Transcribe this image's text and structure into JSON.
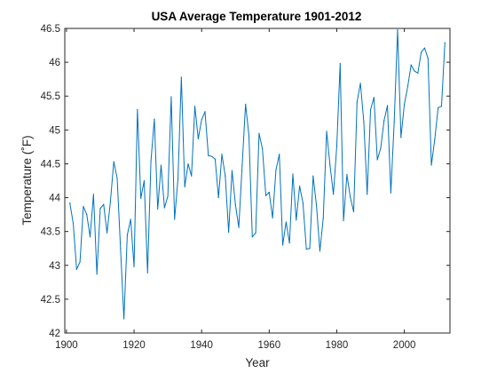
{
  "chart_data": {
    "type": "line",
    "title": "USA Average Temperature 1901-2012",
    "xlabel": "Year",
    "ylabel": "Temperature (˚F)",
    "xlim": [
      1899.5,
      2013.5
    ],
    "ylim": [
      42,
      46.5
    ],
    "xticks": [
      1900,
      1920,
      1940,
      1960,
      1980,
      2000
    ],
    "yticks": [
      42,
      42.5,
      43,
      43.5,
      44,
      44.5,
      45,
      45.5,
      46,
      46.5
    ],
    "ytick_labels": [
      "42",
      "42.5",
      "43",
      "43.5",
      "44",
      "44.5",
      "45",
      "45.5",
      "46",
      "46.5"
    ],
    "grid": false,
    "line_color": "#0072BD",
    "x": [
      1901,
      1902,
      1903,
      1904,
      1905,
      1906,
      1907,
      1908,
      1909,
      1910,
      1911,
      1912,
      1913,
      1914,
      1915,
      1916,
      1917,
      1918,
      1919,
      1920,
      1921,
      1922,
      1923,
      1924,
      1925,
      1926,
      1927,
      1928,
      1929,
      1930,
      1931,
      1932,
      1933,
      1934,
      1935,
      1936,
      1937,
      1938,
      1939,
      1940,
      1941,
      1942,
      1943,
      1944,
      1945,
      1946,
      1947,
      1948,
      1949,
      1950,
      1951,
      1952,
      1953,
      1954,
      1955,
      1956,
      1957,
      1958,
      1959,
      1960,
      1961,
      1962,
      1963,
      1964,
      1965,
      1966,
      1967,
      1968,
      1969,
      1970,
      1971,
      1972,
      1973,
      1974,
      1975,
      1976,
      1977,
      1978,
      1979,
      1980,
      1981,
      1982,
      1983,
      1984,
      1985,
      1986,
      1987,
      1988,
      1989,
      1990,
      1991,
      1992,
      1993,
      1994,
      1995,
      1996,
      1997,
      1998,
      1999,
      2000,
      2001,
      2002,
      2003,
      2004,
      2005,
      2006,
      2007,
      2008,
      2009,
      2010,
      2011,
      2012
    ],
    "y": [
      43.92,
      43.62,
      42.94,
      43.05,
      43.87,
      43.75,
      43.42,
      44.05,
      42.87,
      43.84,
      43.9,
      43.48,
      43.94,
      44.53,
      44.29,
      43.25,
      42.21,
      43.45,
      43.68,
      42.98,
      45.3,
      43.99,
      44.25,
      42.89,
      44.54,
      45.16,
      43.83,
      44.48,
      43.85,
      44.02,
      45.49,
      43.68,
      44.28,
      45.78,
      44.16,
      44.5,
      44.32,
      45.35,
      44.87,
      45.15,
      45.27,
      44.62,
      44.61,
      44.57,
      44.0,
      44.64,
      44.32,
      43.49,
      44.4,
      43.9,
      43.56,
      44.48,
      45.38,
      44.92,
      43.42,
      43.48,
      44.95,
      44.72,
      44.03,
      44.08,
      43.7,
      44.41,
      44.64,
      43.3,
      43.64,
      43.33,
      44.35,
      43.67,
      44.17,
      43.92,
      43.24,
      43.25,
      44.32,
      43.88,
      43.21,
      43.7,
      44.98,
      44.48,
      44.05,
      44.76,
      45.98,
      43.66,
      44.34,
      44.01,
      43.79,
      45.41,
      45.69,
      45.12,
      44.05,
      45.3,
      45.48,
      44.56,
      44.73,
      45.14,
      45.36,
      44.07,
      45.12,
      46.48,
      44.89,
      45.38,
      45.64,
      45.96,
      45.87,
      45.84,
      46.15,
      46.21,
      46.06,
      44.48,
      44.86,
      45.33,
      45.35,
      46.29
    ]
  }
}
